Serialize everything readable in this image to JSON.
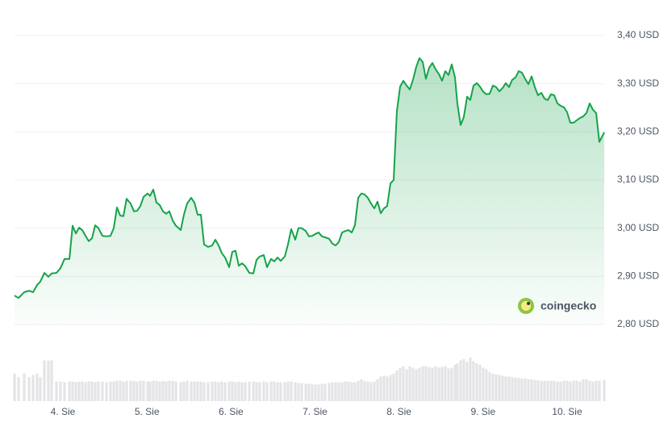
{
  "chart_data": {
    "type": "line",
    "watermark": "coingecko",
    "x": [
      3.424,
      3.472,
      3.539,
      3.597,
      3.645,
      3.693,
      3.731,
      3.779,
      3.827,
      3.866,
      3.923,
      3.971,
      4.019,
      4.077,
      4.115,
      4.154,
      4.192,
      4.23,
      4.269,
      4.307,
      4.346,
      4.384,
      4.422,
      4.47,
      4.518,
      4.566,
      4.605,
      4.643,
      4.682,
      4.72,
      4.758,
      4.806,
      4.845,
      4.883,
      4.922,
      4.96,
      5.008,
      5.037,
      5.075,
      5.114,
      5.152,
      5.19,
      5.229,
      5.267,
      5.306,
      5.344,
      5.402,
      5.44,
      5.478,
      5.526,
      5.565,
      5.603,
      5.642,
      5.68,
      5.728,
      5.776,
      5.814,
      5.853,
      5.891,
      5.93,
      5.978,
      6.016,
      6.054,
      6.093,
      6.131,
      6.17,
      6.218,
      6.266,
      6.304,
      6.342,
      6.39,
      6.429,
      6.477,
      6.515,
      6.554,
      6.592,
      6.64,
      6.678,
      6.717,
      6.765,
      6.803,
      6.842,
      6.89,
      6.928,
      6.966,
      7.005,
      7.043,
      7.082,
      7.12,
      7.168,
      7.206,
      7.245,
      7.283,
      7.322,
      7.36,
      7.398,
      7.437,
      7.475,
      7.514,
      7.552,
      7.59,
      7.629,
      7.667,
      7.706,
      7.744,
      7.782,
      7.821,
      7.859,
      7.898,
      7.936,
      7.974,
      8.013,
      8.051,
      8.09,
      8.128,
      8.166,
      8.205,
      8.243,
      8.282,
      8.32,
      8.358,
      8.397,
      8.435,
      8.474,
      8.512,
      8.55,
      8.589,
      8.627,
      8.666,
      8.694,
      8.733,
      8.771,
      8.81,
      8.848,
      8.886,
      8.925,
      8.963,
      9.002,
      9.04,
      9.078,
      9.117,
      9.155,
      9.194,
      9.232,
      9.27,
      9.309,
      9.347,
      9.386,
      9.424,
      9.462,
      9.501,
      9.539,
      9.578,
      9.616,
      9.654,
      9.693,
      9.731,
      9.77,
      9.808,
      9.846,
      9.885,
      9.923,
      9.962,
      10.0,
      10.038,
      10.077,
      10.115,
      10.154,
      10.192,
      10.23,
      10.269,
      10.307,
      10.346,
      10.384,
      10.442
    ],
    "series": [
      {
        "color": "#16a34a",
        "values": [
          2.86,
          2.855,
          2.867,
          2.87,
          2.867,
          2.882,
          2.889,
          2.907,
          2.899,
          2.906,
          2.907,
          2.917,
          2.936,
          2.936,
          3.005,
          2.989,
          3.001,
          2.996,
          2.984,
          2.973,
          2.979,
          3.006,
          3.0,
          2.984,
          2.983,
          2.984,
          3.0,
          3.043,
          3.026,
          3.025,
          3.061,
          3.051,
          3.035,
          3.036,
          3.046,
          3.065,
          3.072,
          3.067,
          3.08,
          3.053,
          3.048,
          3.035,
          3.03,
          3.035,
          3.016,
          3.005,
          2.996,
          3.028,
          3.051,
          3.063,
          3.053,
          3.028,
          3.028,
          2.966,
          2.961,
          2.964,
          2.976,
          2.964,
          2.948,
          2.939,
          2.919,
          2.951,
          2.953,
          2.922,
          2.927,
          2.921,
          2.907,
          2.906,
          2.934,
          2.941,
          2.944,
          2.919,
          2.936,
          2.931,
          2.939,
          2.932,
          2.941,
          2.966,
          2.998,
          2.976,
          3.0,
          3.0,
          2.994,
          2.983,
          2.984,
          2.988,
          2.991,
          2.983,
          2.981,
          2.978,
          2.968,
          2.964,
          2.971,
          2.991,
          2.994,
          2.996,
          2.991,
          3.006,
          3.063,
          3.072,
          3.07,
          3.063,
          3.051,
          3.041,
          3.055,
          3.031,
          3.041,
          3.046,
          3.093,
          3.1,
          3.242,
          3.294,
          3.306,
          3.296,
          3.288,
          3.308,
          3.335,
          3.353,
          3.345,
          3.31,
          3.333,
          3.343,
          3.33,
          3.32,
          3.306,
          3.326,
          3.318,
          3.34,
          3.313,
          3.259,
          3.214,
          3.231,
          3.273,
          3.266,
          3.296,
          3.301,
          3.294,
          3.283,
          3.278,
          3.279,
          3.296,
          3.293,
          3.284,
          3.291,
          3.301,
          3.293,
          3.308,
          3.313,
          3.326,
          3.323,
          3.31,
          3.299,
          3.315,
          3.293,
          3.276,
          3.281,
          3.269,
          3.266,
          3.278,
          3.276,
          3.259,
          3.254,
          3.251,
          3.241,
          3.219,
          3.219,
          3.224,
          3.229,
          3.232,
          3.239,
          3.259,
          3.246,
          3.239,
          3.179,
          3.199
        ]
      },
      {
        "type": "bar",
        "axis": "y2",
        "color": "#e4e4e7",
        "values": [
          38,
          33,
          38,
          33,
          36,
          38,
          33,
          56,
          56,
          56,
          27,
          27,
          26,
          27,
          27,
          26,
          27,
          27,
          26,
          27,
          27,
          26,
          27,
          27,
          26,
          27,
          27,
          28,
          28,
          27,
          28,
          28,
          28,
          27,
          28,
          28,
          27,
          27,
          28,
          28,
          27,
          28,
          27,
          28,
          28,
          27,
          26,
          27,
          28,
          27,
          27,
          27,
          27,
          26,
          26,
          27,
          27,
          26,
          27,
          26,
          27,
          27,
          26,
          27,
          26,
          26,
          27,
          27,
          26,
          26,
          27,
          26,
          27,
          27,
          26,
          26,
          26,
          27,
          27,
          26,
          25,
          25,
          24,
          24,
          23,
          23,
          23,
          24,
          24,
          25,
          26,
          26,
          26,
          26,
          27,
          27,
          26,
          26,
          28,
          30,
          28,
          27,
          26,
          27,
          30,
          34,
          35,
          34,
          36,
          38,
          42,
          46,
          48,
          44,
          48,
          46,
          44,
          46,
          48,
          48,
          47,
          46,
          48,
          46,
          47,
          48,
          45,
          46,
          50,
          52,
          56,
          58,
          54,
          60,
          55,
          52,
          50,
          46,
          44,
          40,
          38,
          37,
          36,
          35,
          34,
          34,
          33,
          32,
          32,
          31,
          31,
          30,
          30,
          29,
          29,
          28,
          28,
          28,
          28,
          28,
          27,
          27,
          28,
          28,
          27,
          28,
          28,
          27,
          30,
          30,
          28,
          27,
          28,
          28,
          29
        ]
      }
    ],
    "xlim": [
      3.424,
      10.442
    ],
    "xticks": [
      {
        "value": 4,
        "label": "4. Sie"
      },
      {
        "value": 5,
        "label": "5. Sie"
      },
      {
        "value": 6,
        "label": "6. Sie"
      },
      {
        "value": 7,
        "label": "7. Sie"
      },
      {
        "value": 8,
        "label": "8. Sie"
      },
      {
        "value": 9,
        "label": "9. Sie"
      },
      {
        "value": 10,
        "label": "10. Sie"
      }
    ],
    "ylim": [
      2.8,
      3.4
    ],
    "yticks": [
      {
        "value": 2.8,
        "label": "2,80 USD"
      },
      {
        "value": 2.9,
        "label": "2,90 USD"
      },
      {
        "value": 3.0,
        "label": "3,00 USD"
      },
      {
        "value": 3.1,
        "label": "3,10 USD"
      },
      {
        "value": 3.2,
        "label": "3,20 USD"
      },
      {
        "value": 3.3,
        "label": "3,30 USD"
      },
      {
        "value": 3.4,
        "label": "3,40 USD"
      }
    ],
    "y2lim": [
      0,
      100
    ],
    "grid": true
  }
}
